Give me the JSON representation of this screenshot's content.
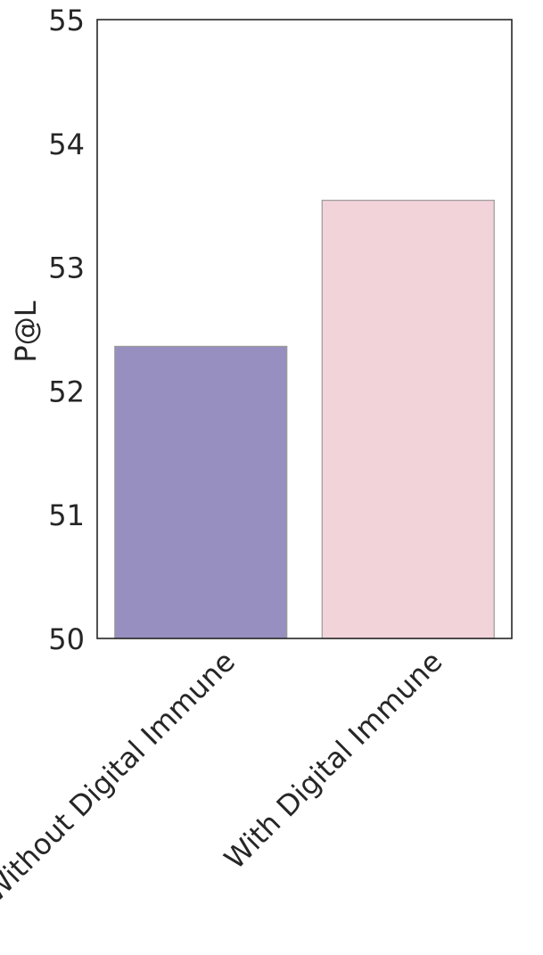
{
  "chart_data": {
    "type": "bar",
    "title": "",
    "xlabel": "",
    "ylabel": "P@L",
    "ylim": [
      50,
      55
    ],
    "yticks": [
      50,
      51,
      52,
      53,
      54,
      55
    ],
    "grid": false,
    "categories": [
      "Without Digital Immune",
      "With Digital Immune"
    ],
    "values": [
      52.36,
      53.54
    ],
    "colors": [
      "#978fbf",
      "#f3d3da"
    ]
  }
}
